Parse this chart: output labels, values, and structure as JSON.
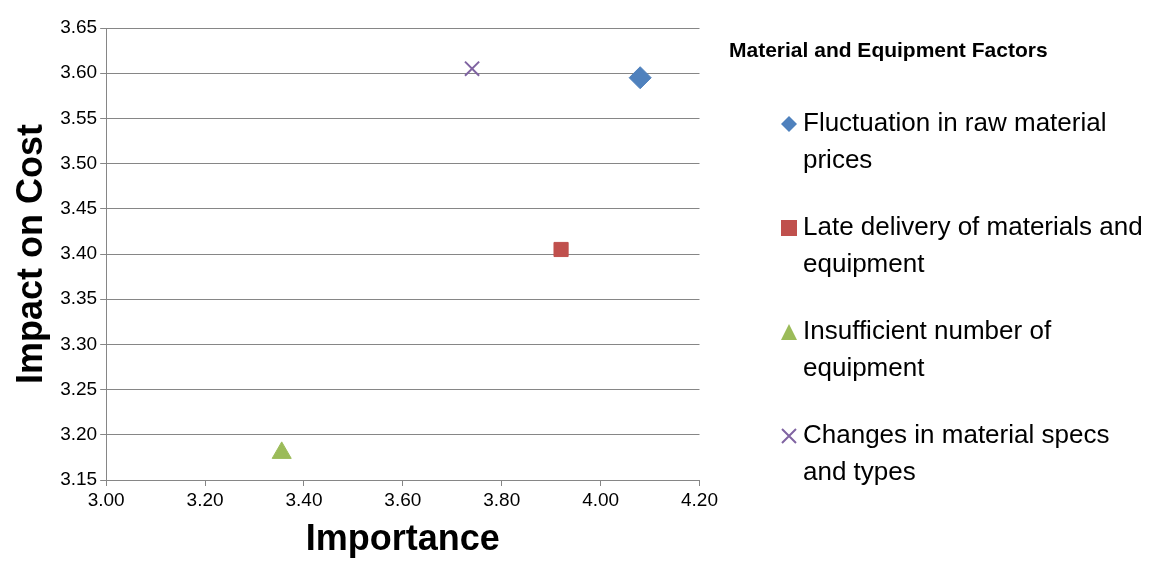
{
  "chart_data": {
    "type": "scatter",
    "xlabel": "Importance",
    "ylabel": "Impact on Cost",
    "legend_title": "Material and Equipment Factors",
    "legend": "right",
    "grid": "y",
    "xlim": [
      3.0,
      4.2
    ],
    "xticks": [
      {
        "value": 3.0,
        "label": "3.00"
      },
      {
        "value": 3.2,
        "label": "3.20"
      },
      {
        "value": 3.4,
        "label": "3.40"
      },
      {
        "value": 3.6,
        "label": "3.60"
      },
      {
        "value": 3.8,
        "label": "3.80"
      },
      {
        "value": 4.0,
        "label": "4.00"
      },
      {
        "value": 4.2,
        "label": "4.20"
      }
    ],
    "ylim": [
      3.15,
      3.65
    ],
    "yticks": [
      {
        "value": 3.15,
        "label": "3.15"
      },
      {
        "value": 3.2,
        "label": "3.20"
      },
      {
        "value": 3.25,
        "label": "3.25"
      },
      {
        "value": 3.3,
        "label": "3.30"
      },
      {
        "value": 3.35,
        "label": "3.35"
      },
      {
        "value": 3.4,
        "label": "3.40"
      },
      {
        "value": 3.45,
        "label": "3.45"
      },
      {
        "value": 3.5,
        "label": "3.50"
      },
      {
        "value": 3.55,
        "label": "3.55"
      },
      {
        "value": 3.6,
        "label": "3.60"
      },
      {
        "value": 3.65,
        "label": "3.65"
      }
    ],
    "series": [
      {
        "name": "Fluctuation in raw material prices",
        "color": "#4f81bd",
        "marker": "diamond",
        "x": [
          4.08
        ],
        "values": [
          3.595
        ]
      },
      {
        "name": "Late delivery of materials and equipment",
        "color": "#c0504d",
        "marker": "square",
        "x": [
          3.92
        ],
        "values": [
          3.405
        ]
      },
      {
        "name": "Insufficient number of equipment",
        "color": "#9bbb59",
        "marker": "triangle",
        "x": [
          3.355
        ],
        "values": [
          3.18
        ]
      },
      {
        "name": "Changes in material specs and types",
        "color": "#8064a2",
        "marker": "cross",
        "x": [
          3.74
        ],
        "values": [
          3.605
        ]
      }
    ]
  }
}
